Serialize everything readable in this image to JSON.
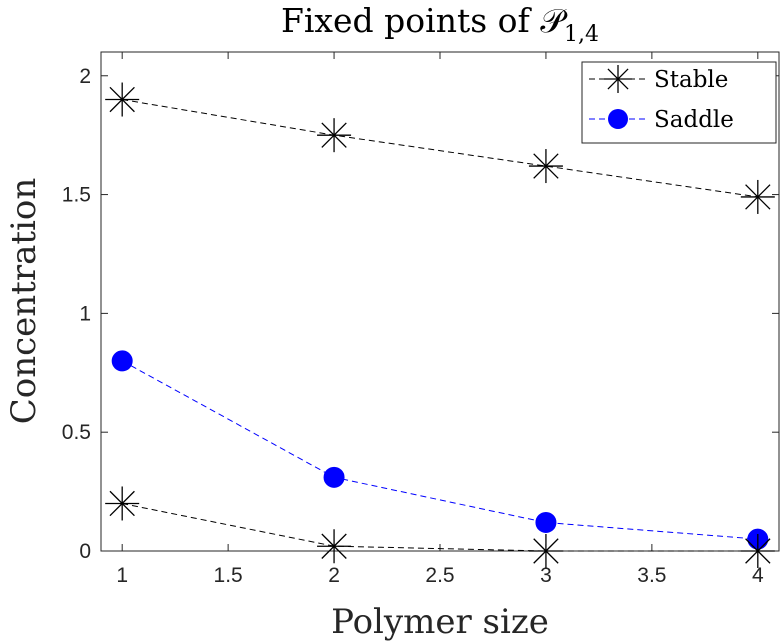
{
  "chart_data": {
    "type": "line",
    "title": "Fixed points of 𝒫",
    "title_subscript": "1,4",
    "xlabel": "Polymer size",
    "ylabel": "Concentration",
    "xlim": [
      0.9,
      4.1
    ],
    "ylim": [
      0,
      2.1
    ],
    "xticks": [
      1,
      1.5,
      2,
      2.5,
      3,
      3.5,
      4
    ],
    "xtick_labels": [
      "1",
      "1.5",
      "2",
      "2.5",
      "3",
      "3.5",
      "4"
    ],
    "yticks": [
      0,
      0.5,
      1,
      1.5,
      2
    ],
    "ytick_labels": [
      "0",
      "0.5",
      "1",
      "1.5",
      "2"
    ],
    "grid": false,
    "legend_position": "top-right",
    "legend": [
      {
        "label": "Stable",
        "marker": "asterisk",
        "color": "#000000"
      },
      {
        "label": "Saddle",
        "marker": "filled-circle",
        "color": "#0000ff"
      }
    ],
    "series": [
      {
        "name": "Stable",
        "marker": "asterisk",
        "color": "#000000",
        "linestyle": "dashed",
        "x": [
          1,
          2,
          3,
          4
        ],
        "y": [
          1.9,
          1.75,
          1.62,
          1.49
        ]
      },
      {
        "name": "Saddle",
        "marker": "filled-circle",
        "color": "#0000ff",
        "linestyle": "dashed",
        "x": [
          1,
          2,
          3,
          4
        ],
        "y": [
          0.8,
          0.31,
          0.12,
          0.05
        ]
      },
      {
        "name": "Stable",
        "marker": "asterisk",
        "color": "#000000",
        "linestyle": "dashed",
        "x": [
          1,
          2,
          3,
          4
        ],
        "y": [
          0.2,
          0.02,
          0.0,
          0.0
        ]
      }
    ]
  }
}
